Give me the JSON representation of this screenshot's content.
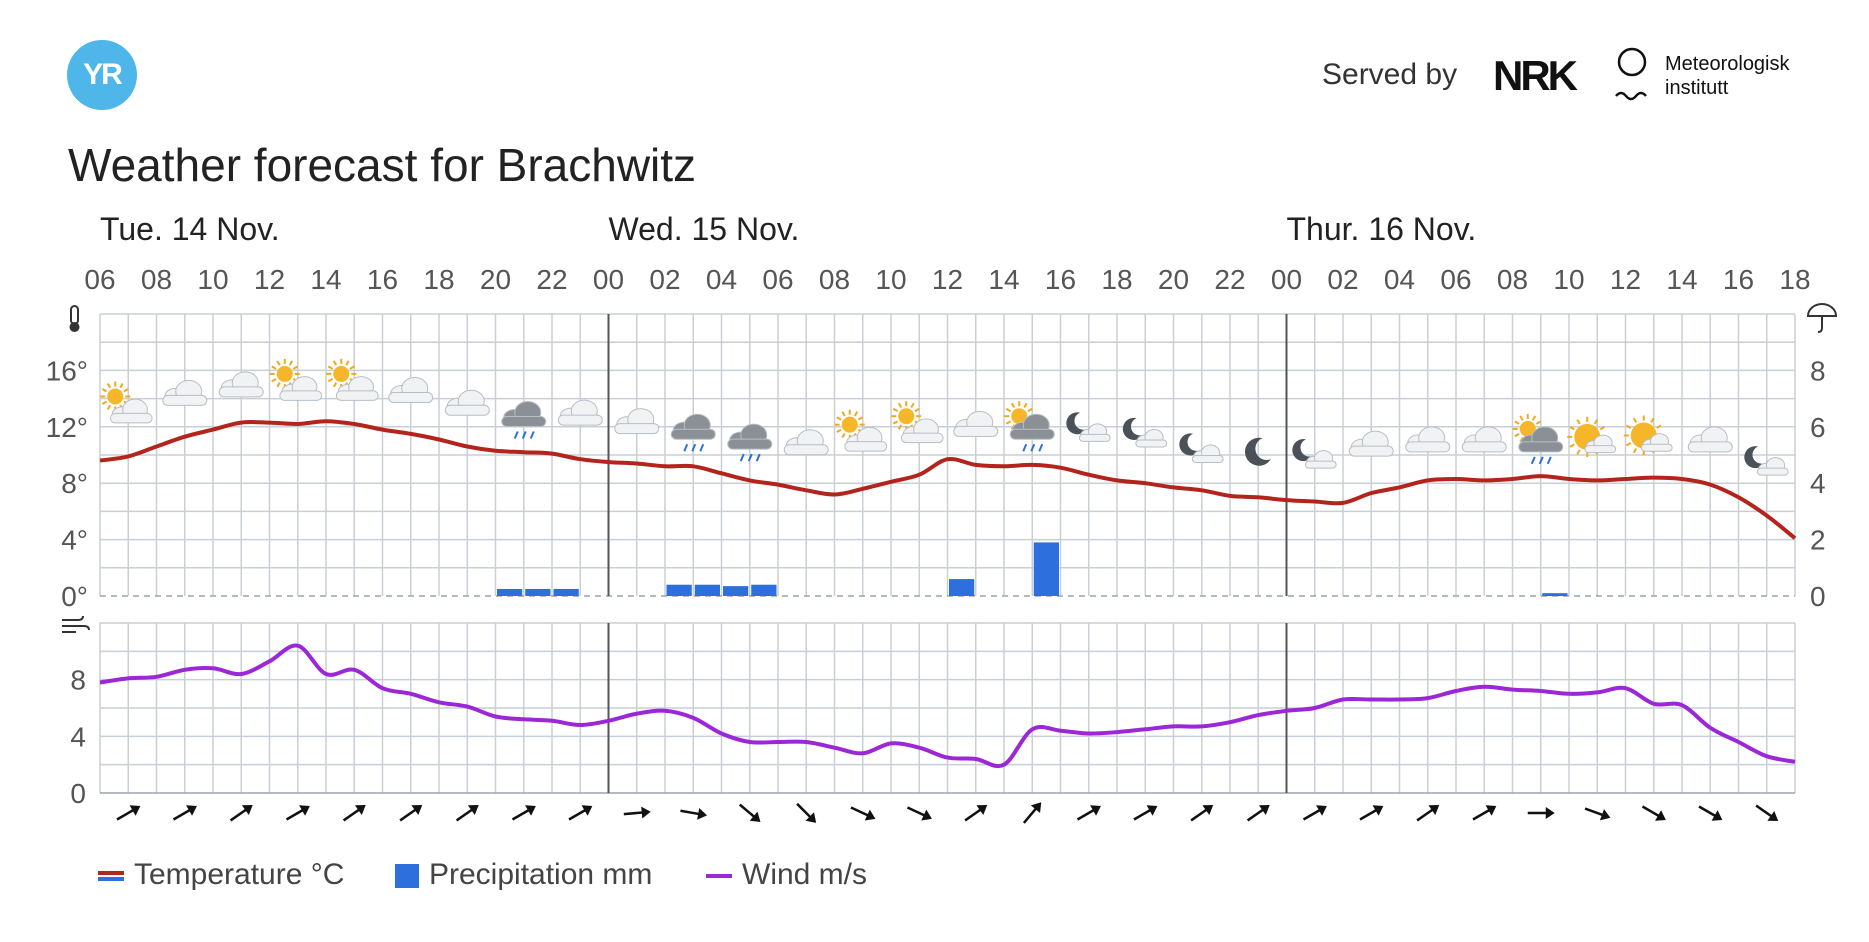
{
  "header": {
    "logo_text": "YR",
    "served_by": "Served by",
    "nrk_logo": "NRK",
    "met_line1": "Meteorologisk",
    "met_line2": "institutt"
  },
  "title": "Weather forecast for Brachwitz",
  "legend": {
    "temperature": "Temperature °C",
    "precipitation": "Precipitation mm",
    "wind": "Wind m/s"
  },
  "colors": {
    "temperature": "#b3241c",
    "temperature_swatch_low": "#2d6fdc",
    "precipitation": "#2d6fdc",
    "wind": "#9b27d6",
    "grid": "#c9cfd6",
    "day_separator": "#555555"
  },
  "chart_data": {
    "type": "line",
    "days": [
      {
        "label": "Tue. 14 Nov.",
        "start_hour": 6
      },
      {
        "label": "Wed. 15 Nov.",
        "start_hour": 24
      },
      {
        "label": "Thur. 16 Nov.",
        "start_hour": 48
      }
    ],
    "x_tick_labels": [
      "06",
      "08",
      "10",
      "12",
      "14",
      "16",
      "18",
      "20",
      "22",
      "00",
      "02",
      "04",
      "06",
      "08",
      "10",
      "12",
      "14",
      "16",
      "18",
      "20",
      "22",
      "00",
      "02",
      "04",
      "06",
      "08",
      "10",
      "12",
      "14",
      "16",
      "18"
    ],
    "x_hours": [
      6,
      7,
      8,
      9,
      10,
      11,
      12,
      13,
      14,
      15,
      16,
      17,
      18,
      19,
      20,
      21,
      22,
      23,
      24,
      25,
      26,
      27,
      28,
      29,
      30,
      31,
      32,
      33,
      34,
      35,
      36,
      37,
      38,
      39,
      40,
      41,
      42,
      43,
      44,
      45,
      46,
      47,
      48,
      49,
      50,
      51,
      52,
      53,
      54,
      55,
      56,
      57,
      58,
      59,
      60,
      61,
      62,
      63,
      64,
      65,
      66
    ],
    "temperature": {
      "unit": "°C",
      "ylim": [
        0,
        20
      ],
      "yticks": [
        "0°",
        "4°",
        "8°",
        "12°",
        "16°"
      ],
      "ytick_values": [
        0,
        4,
        8,
        12,
        16
      ],
      "values": [
        9.6,
        9.9,
        10.6,
        11.3,
        11.8,
        12.3,
        12.3,
        12.2,
        12.4,
        12.2,
        11.8,
        11.5,
        11.1,
        10.6,
        10.3,
        10.2,
        10.1,
        9.7,
        9.5,
        9.4,
        9.2,
        9.2,
        8.7,
        8.2,
        7.9,
        7.5,
        7.2,
        7.6,
        8.1,
        8.6,
        9.7,
        9.3,
        9.2,
        9.3,
        9.1,
        8.6,
        8.2,
        8.0,
        7.7,
        7.5,
        7.1,
        7.0,
        6.8,
        6.7,
        6.6,
        7.3,
        7.7,
        8.2,
        8.3,
        8.2,
        8.3,
        8.5,
        8.3,
        8.2,
        8.3,
        8.4,
        8.3,
        7.9,
        7.0,
        5.7,
        4.1
      ]
    },
    "precipitation": {
      "unit": "mm",
      "ylim": [
        0,
        10
      ],
      "yticks": [
        "0",
        "2",
        "4",
        "6",
        "8"
      ],
      "ytick_values": [
        0,
        2,
        4,
        6,
        8
      ],
      "bars": [
        {
          "hour": 20,
          "value": 0.25
        },
        {
          "hour": 21,
          "value": 0.25
        },
        {
          "hour": 22,
          "value": 0.25
        },
        {
          "hour": 26,
          "value": 0.4
        },
        {
          "hour": 27,
          "value": 0.4
        },
        {
          "hour": 28,
          "value": 0.35
        },
        {
          "hour": 29,
          "value": 0.4
        },
        {
          "hour": 36,
          "value": 0.6
        },
        {
          "hour": 39,
          "value": 1.9
        },
        {
          "hour": 57,
          "value": 0.1
        }
      ]
    },
    "wind": {
      "unit": "m/s",
      "ylim": [
        0,
        12
      ],
      "yticks": [
        "0",
        "4",
        "8"
      ],
      "ytick_values": [
        0,
        4,
        8
      ],
      "values": [
        7.8,
        8.1,
        8.2,
        8.7,
        8.8,
        8.4,
        9.3,
        10.4,
        8.4,
        8.7,
        7.4,
        7.0,
        6.4,
        6.1,
        5.4,
        5.2,
        5.1,
        4.8,
        5.1,
        5.6,
        5.8,
        5.3,
        4.2,
        3.6,
        3.6,
        3.6,
        3.2,
        2.8,
        3.5,
        3.2,
        2.5,
        2.4,
        2.0,
        4.5,
        4.4,
        4.2,
        4.3,
        4.5,
        4.7,
        4.7,
        5.0,
        5.5,
        5.8,
        6.0,
        6.6,
        6.6,
        6.6,
        6.7,
        7.2,
        7.5,
        7.3,
        7.2,
        7.0,
        7.1,
        7.4,
        6.3,
        6.2,
        4.6,
        3.6,
        2.6,
        2.2
      ],
      "direction_hours": [
        7,
        9,
        11,
        13,
        15,
        17,
        19,
        21,
        23,
        25,
        27,
        29,
        31,
        33,
        35,
        37,
        39,
        41,
        43,
        45,
        47,
        49,
        51,
        53,
        55,
        57,
        59,
        61,
        63,
        65
      ],
      "direction_angles": [
        -30,
        -30,
        -35,
        -30,
        -35,
        -35,
        -35,
        -30,
        -30,
        -5,
        10,
        40,
        45,
        25,
        25,
        -35,
        -50,
        -30,
        -30,
        -35,
        -35,
        -30,
        -30,
        -35,
        -30,
        0,
        20,
        30,
        30,
        35
      ]
    },
    "weather_symbols": {
      "hours": [
        7,
        9,
        11,
        13,
        15,
        17,
        19,
        21,
        23,
        25,
        27,
        29,
        31,
        33,
        35,
        37,
        39,
        41,
        43,
        45,
        47,
        49,
        51,
        53,
        55,
        57,
        59,
        61,
        63,
        65
      ],
      "symbols": [
        "partly-sunny-icon",
        "cloud-icon",
        "cloud-icon",
        "partly-sunny-icon",
        "partly-sunny-icon",
        "cloud-icon",
        "cloud-icon",
        "rain-cloud-icon",
        "cloud-icon",
        "cloud-icon",
        "rain-cloud-icon",
        "rain-cloud-icon",
        "cloud-icon",
        "partly-sunny-icon",
        "partly-sunny-icon",
        "cloud-icon",
        "sun-rain-cloud-icon",
        "moon-cloud-icon",
        "moon-cloud-icon",
        "moon-cloud-icon",
        "moon-icon",
        "moon-cloud-icon",
        "cloud-icon",
        "cloud-icon",
        "cloud-icon",
        "sun-rain-cloud-icon",
        "sun-cloud-icon",
        "sun-cloud-icon",
        "cloud-icon",
        "moon-cloud-icon"
      ],
      "symbol_temps": [
        13.3,
        14.3,
        14.9,
        14.9,
        14.9,
        14.5,
        13.6,
        12.8,
        12.9,
        12.3,
        11.9,
        11.2,
        10.8,
        11.3,
        11.9,
        12.1,
        11.9,
        11.8,
        11.4,
        10.3,
        10.2,
        9.9,
        10.7,
        11.0,
        11.0,
        11.0,
        11.0,
        11.1,
        11.0,
        9.4
      ]
    }
  }
}
